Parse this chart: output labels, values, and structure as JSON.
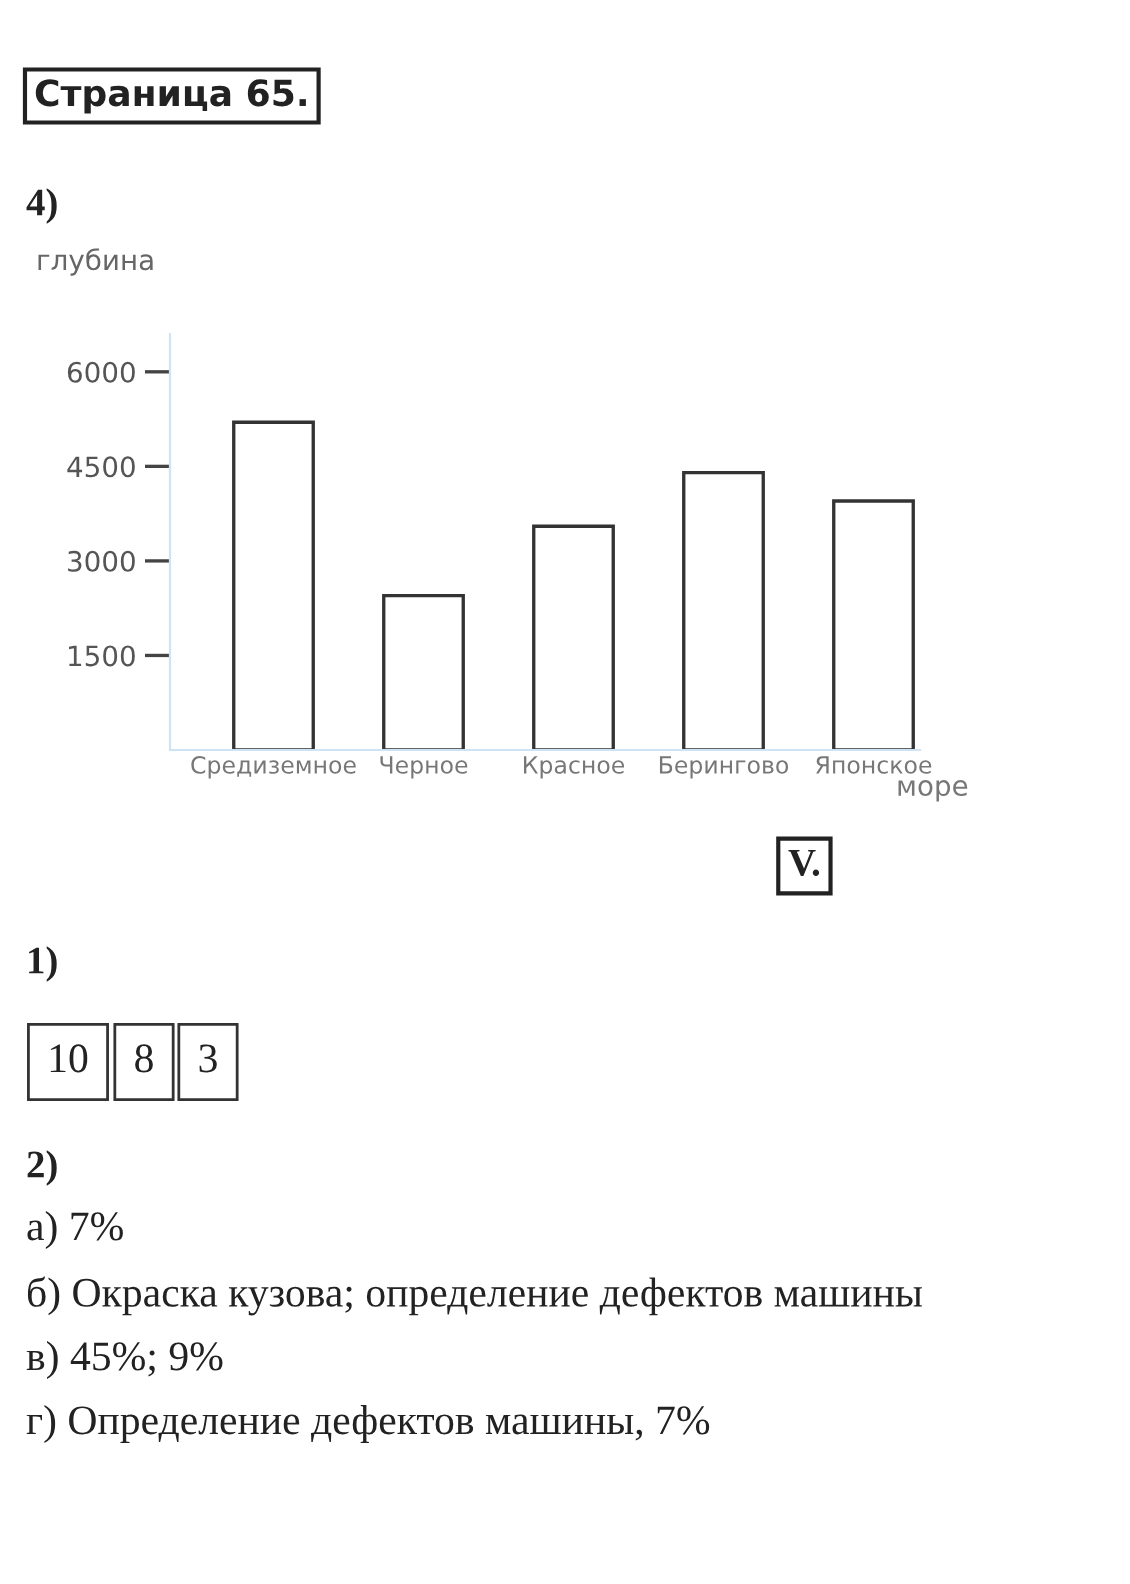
{
  "chart_data": {
    "type": "bar",
    "ylabel": "глубина",
    "xlabel": "море",
    "categories": [
      "Средиземное",
      "Черное",
      "Красное",
      "Берингово",
      "Японское"
    ],
    "values": [
      5200,
      2450,
      3550,
      4400,
      3950
    ],
    "color": "#ffffff",
    "ylim": [
      0,
      6600
    ],
    "yticks": [
      1500,
      3000,
      4500,
      6000
    ],
    "grid": false,
    "annotations": [
      "Страница 65.",
      "4)",
      "V.",
      "1)",
      "10",
      "8",
      "3",
      "2)",
      "а) 7%",
      "б) Окраска кузова; определение дефектов машины",
      "в) 45%; 9%",
      "г) Определение дефектов машины, 7%"
    ]
  }
}
